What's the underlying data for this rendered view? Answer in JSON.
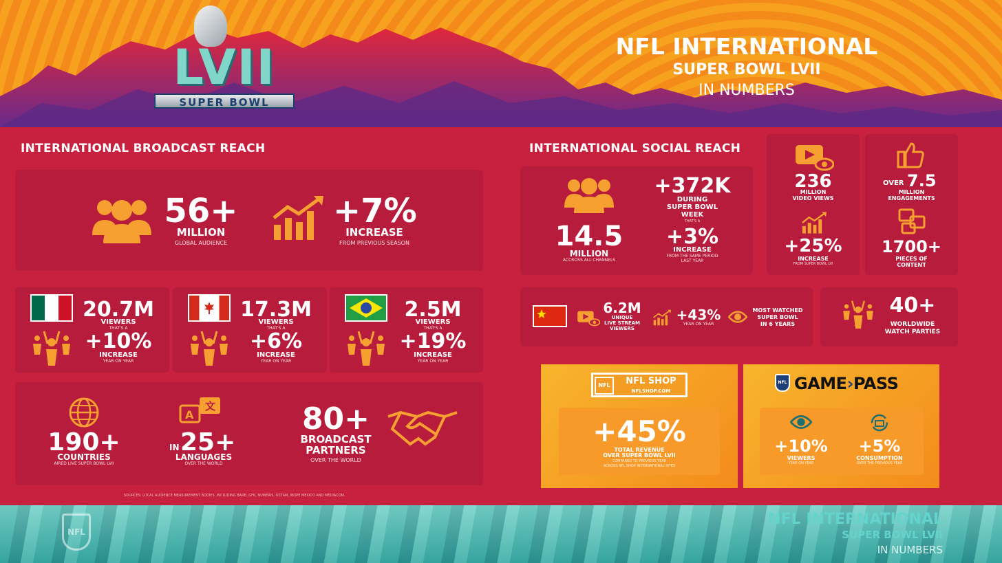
{
  "colors": {
    "background": "#c8213f",
    "panel": "#b81c3c",
    "accent_orange": "#f5a031",
    "footer_teal": "#3fb6ad"
  },
  "header": {
    "logo": {
      "numeral": "LVII",
      "text": "SUPER BOWL"
    },
    "title_line1": "NFL INTERNATIONAL",
    "title_line2": "SUPER BOWL LVII",
    "title_line3": "IN NUMBERS"
  },
  "broadcast": {
    "title": "INTERNATIONAL BROADCAST REACH",
    "audience": {
      "value": "56+",
      "unit": "MILLION",
      "label": "GLOBAL AUDIENCE",
      "icon": "people-icon"
    },
    "increase": {
      "value": "+7%",
      "unit": "INCREASE",
      "label": "FROM PREVIOUS SEASON",
      "icon": "growth-chart-icon"
    },
    "countries": [
      {
        "flag": "mexico-flag",
        "viewers": "20.7M",
        "viewers_label": "VIEWERS",
        "thats": "THAT'S A",
        "increase": "+10%",
        "increase_label": "INCREASE",
        "sub": "YEAR ON YEAR"
      },
      {
        "flag": "canada-flag",
        "viewers": "17.3M",
        "viewers_label": "VIEWERS",
        "thats": "THAT'S A",
        "increase": "+6%",
        "increase_label": "INCREASE",
        "sub": "YEAR ON YEAR"
      },
      {
        "flag": "brazil-flag",
        "viewers": "2.5M",
        "viewers_label": "VIEWERS",
        "thats": "THAT'S A",
        "increase": "+19%",
        "increase_label": "INCREASE",
        "sub": "YEAR ON YEAR"
      }
    ],
    "reach": {
      "countries_value": "190+",
      "countries_label": "COUNTRIES",
      "countries_sub": "AIRED LIVE SUPER BOWL LVII",
      "languages_in": "IN",
      "languages_value": "25+",
      "languages_label": "LANGUAGES",
      "languages_sub": "OVER THE WORLD",
      "partners_value": "80+",
      "partners_label1": "BROADCAST",
      "partners_label2": "PARTNERS",
      "partners_sub": "OVER THE WORLD"
    },
    "sources": "SOURCES: LOCAL AUDIENCE MEASUREMENT BODIES, INCLUDING BARB, GFK, NUMERIS, OZTAM, IBOPE MEXICO AND MEDIACOM."
  },
  "social": {
    "title": "INTERNATIONAL SOCIAL REACH",
    "followers_value": "14.5",
    "followers_unit": "MILLION",
    "followers_sub": "ACCROSS ALL CHANNELS",
    "gain_value": "+372K",
    "gain_label1": "DURING",
    "gain_label2": "SUPER BOWL",
    "gain_label3": "WEEK",
    "gain_thats": "THAT'S A",
    "gain_increase": "+3%",
    "gain_increase_label": "INCREASE",
    "gain_increase_sub1": "FROM THE SAME PERIOD",
    "gain_increase_sub2": "LAST YEAR",
    "video_value": "236",
    "video_label1": "MILLION",
    "video_label2": "VIDEO VIEWS",
    "video_increase": "+25%",
    "video_increase_label": "INCREASE",
    "video_increase_sub": "FROM SUPER BOWL LVI",
    "engage_over": "OVER",
    "engage_value": "7.5",
    "engage_label1": "MILLION",
    "engage_label2": "ENGAGEMENTS",
    "content_value": "1700+",
    "content_label1": "PIECES OF",
    "content_label2": "CONTENT"
  },
  "china": {
    "flag": "china-flag",
    "stream_value": "6.2M",
    "stream_label1": "UNIQUE",
    "stream_label2": "LIVE STREAM",
    "stream_label3": "VIEWERS",
    "yoy_value": "+43%",
    "yoy_label": "YEAR ON YEAR",
    "watched_label1": "MOST WATCHED",
    "watched_label2": "SUPER BOWL",
    "watched_label3": "IN 6 YEARS"
  },
  "parties": {
    "value": "40+",
    "label1": "WORLDWIDE",
    "label2": "WATCH PARTIES"
  },
  "nflshop": {
    "logo": "NFL SHOP",
    "url": "NFLSHOP.COM",
    "value": "+45%",
    "label1": "TOTAL REVENUE",
    "label2": "OVER SUPER BOWL LVII",
    "sub1": "COMPARED TO PREVIOUS YEAR",
    "sub2": "ACROSS NFL SHOP INTERNATIONAL SITES"
  },
  "gamepass": {
    "logo_a": "GAME",
    "logo_b": "PASS",
    "viewers_value": "+10%",
    "viewers_label": "VIEWERS",
    "viewers_sub": "YEAR ON YEAR",
    "consumption_value": "+5%",
    "consumption_label": "CONSUMPTION",
    "consumption_sub": "OVER THE PREVIOUS YEAR"
  },
  "footer": {
    "line1": "NFL INTERNATIONAL",
    "line2": "SUPER BOWL LVII",
    "line3": "IN NUMBERS",
    "shield": "NFL"
  }
}
